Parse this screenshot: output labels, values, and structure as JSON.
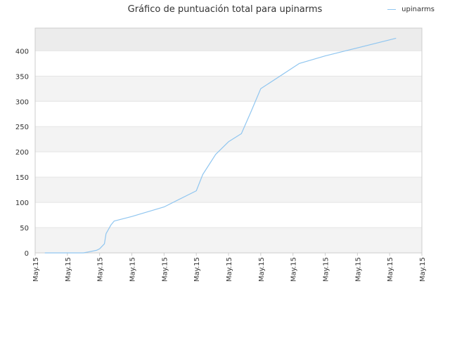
{
  "chart_data": {
    "type": "line",
    "title": "Gráfico de puntuación total para upinarms",
    "xlabel": "",
    "ylabel": "",
    "x_tick_labels": [
      "May.15",
      "May.15",
      "May.15",
      "May.15",
      "May.15",
      "May.15",
      "May.15",
      "May.15",
      "May.15",
      "May.15",
      "May.15",
      "May.15",
      "May.15"
    ],
    "ylim": [
      0,
      445
    ],
    "y_ticks": [
      0,
      50,
      100,
      150,
      200,
      250,
      300,
      350,
      400
    ],
    "grid": true,
    "legend_position": "top-right",
    "series": [
      {
        "name": "upinarms",
        "color": "#90c6f0",
        "points": [
          [
            0.3,
            0
          ],
          [
            1.5,
            0
          ],
          [
            1.9,
            5
          ],
          [
            2.0,
            8
          ],
          [
            2.15,
            18
          ],
          [
            2.2,
            38
          ],
          [
            2.35,
            55
          ],
          [
            2.45,
            63
          ],
          [
            3.0,
            72
          ],
          [
            4.0,
            91
          ],
          [
            5.0,
            123
          ],
          [
            5.2,
            155
          ],
          [
            5.6,
            195
          ],
          [
            6.0,
            220
          ],
          [
            6.4,
            236
          ],
          [
            6.7,
            280
          ],
          [
            7.0,
            325
          ],
          [
            8.2,
            375
          ],
          [
            9.0,
            390
          ],
          [
            11.2,
            425
          ]
        ]
      }
    ]
  },
  "colors": {
    "band_light": "#f3f3f3",
    "band_white": "#ffffff",
    "band_top": "#ececec",
    "grid": "#e4e4e4",
    "axis": "#cccccc"
  }
}
